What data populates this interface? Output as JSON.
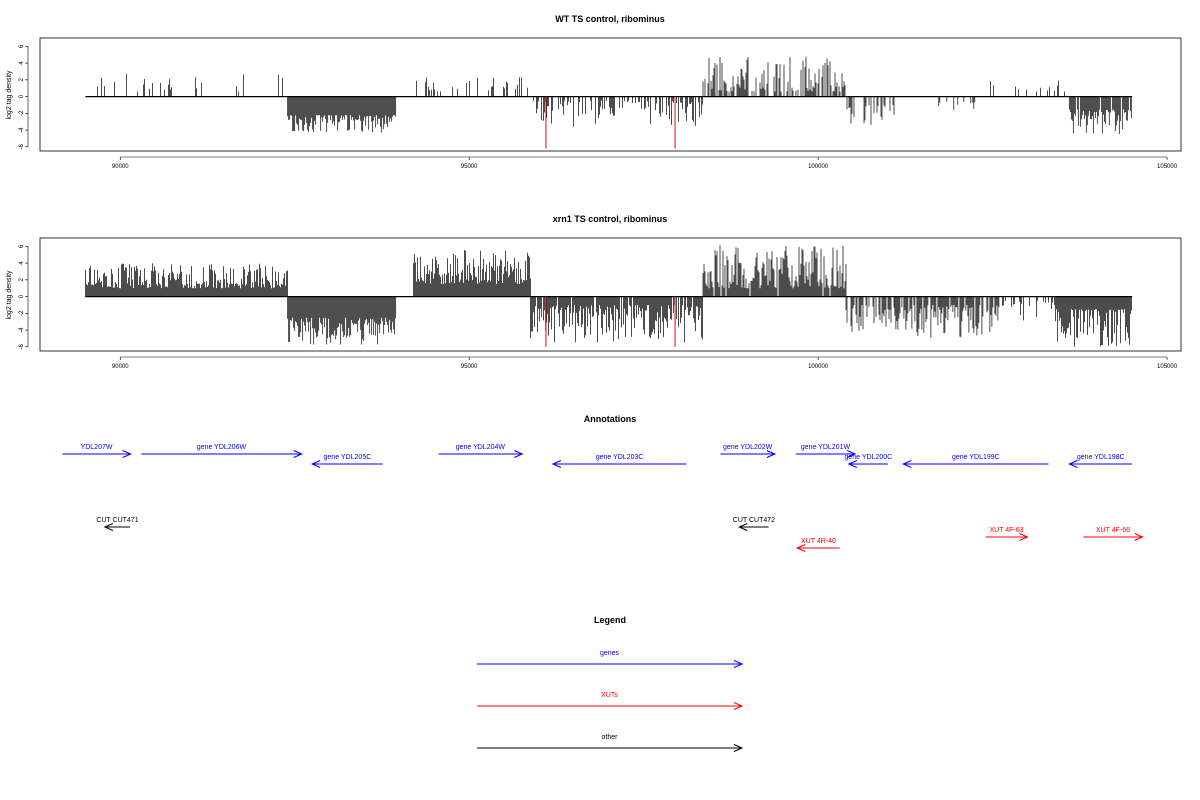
{
  "colors": {
    "gene": "#0000ff",
    "xut": "#ff0000",
    "other": "#000000",
    "cleavage": "#ff0000"
  },
  "chart_data": [
    {
      "type": "bar",
      "title": "WT TS control, ribominus",
      "ylabel": "log2 tag density",
      "xlabel": "",
      "xlim": [
        88850,
        105200
      ],
      "ylim": [
        -6.5,
        7
      ],
      "xticks": [
        "90000",
        "95000",
        "100000",
        "105000"
      ],
      "yticks": [
        "-6",
        "-4",
        "-2",
        "0",
        "2",
        "4",
        "6"
      ],
      "grid": false,
      "segments": [
        {
          "start": 89500,
          "end": 92400,
          "sign": 1,
          "min": 0.6,
          "max": 2.8,
          "density": 0.12
        },
        {
          "start": 92400,
          "end": 93950,
          "sign": -1,
          "min": 2.2,
          "max": 4.3,
          "density": 1.0
        },
        {
          "start": 93950,
          "end": 94200,
          "sign": 0
        },
        {
          "start": 94200,
          "end": 95880,
          "sign": 1,
          "min": 0.6,
          "max": 2.5,
          "density": 0.22
        },
        {
          "start": 95880,
          "end": 98350,
          "sign": -1,
          "min": 0.5,
          "max": 3.6,
          "density": 0.5
        },
        {
          "start": 98350,
          "end": 100400,
          "sign": 1,
          "min": 0.6,
          "max": 4.8,
          "density": 0.55
        },
        {
          "start": 100400,
          "end": 101100,
          "sign": -1,
          "min": 1.0,
          "max": 3.6,
          "density": 0.35
        },
        {
          "start": 101100,
          "end": 101600,
          "sign": 0
        },
        {
          "start": 101600,
          "end": 102400,
          "sign": -1,
          "min": 0.5,
          "max": 1.8,
          "density": 0.18
        },
        {
          "start": 102400,
          "end": 103600,
          "sign": 1,
          "min": 0.6,
          "max": 2.0,
          "density": 0.08
        },
        {
          "start": 103600,
          "end": 104500,
          "sign": -1,
          "min": 1.5,
          "max": 4.5,
          "density": 0.9
        }
      ],
      "red_markers": [
        {
          "x": 96100,
          "y": -6.2
        },
        {
          "x": 97950,
          "y": -6.2
        }
      ]
    },
    {
      "type": "bar",
      "title": "xrn1 TS control, ribominus",
      "ylabel": "log2 tag density",
      "xlabel": "",
      "xlim": [
        88850,
        105200
      ],
      "ylim": [
        -6.5,
        7
      ],
      "xticks": [
        "90000",
        "95000",
        "100000",
        "105000"
      ],
      "yticks": [
        "-6",
        "-4",
        "-2",
        "0",
        "2",
        "4",
        "6"
      ],
      "grid": false,
      "segments": [
        {
          "start": 89500,
          "end": 92400,
          "sign": 1,
          "min": 1.0,
          "max": 4.0,
          "density": 1.0
        },
        {
          "start": 92400,
          "end": 93950,
          "sign": -1,
          "min": 2.5,
          "max": 5.8,
          "density": 1.0
        },
        {
          "start": 93950,
          "end": 94200,
          "sign": 0
        },
        {
          "start": 94200,
          "end": 95880,
          "sign": 1,
          "min": 1.5,
          "max": 5.6,
          "density": 1.0
        },
        {
          "start": 95880,
          "end": 98350,
          "sign": -1,
          "min": 1.0,
          "max": 5.5,
          "density": 0.9
        },
        {
          "start": 98350,
          "end": 100400,
          "sign": 1,
          "min": 1.0,
          "max": 6.2,
          "density": 0.9
        },
        {
          "start": 100400,
          "end": 101100,
          "sign": -1,
          "min": 1.0,
          "max": 4.5,
          "density": 0.7
        },
        {
          "start": 101100,
          "end": 102600,
          "sign": -1,
          "min": 1.0,
          "max": 5.0,
          "density": 0.8
        },
        {
          "start": 102600,
          "end": 103400,
          "sign": -1,
          "min": 0.5,
          "max": 3.0,
          "density": 0.35
        },
        {
          "start": 103400,
          "end": 104500,
          "sign": -1,
          "min": 1.5,
          "max": 6.0,
          "density": 1.0
        }
      ],
      "red_markers": [
        {
          "x": 96100,
          "y": -6.0
        },
        {
          "x": 97950,
          "y": -6.0
        }
      ]
    }
  ],
  "annotations": {
    "title": "Annotations",
    "xlim": [
      88850,
      105200
    ],
    "genes": [
      {
        "label": "YDL207W",
        "start": 89170,
        "end": 90150,
        "dir": "+",
        "row": 0
      },
      {
        "label": "gene YDL206W",
        "start": 90300,
        "end": 92600,
        "dir": "+",
        "row": 0
      },
      {
        "label": "gene YDL205C",
        "start": 92750,
        "end": 93760,
        "dir": "-",
        "row": 1
      },
      {
        "label": "gene YDL204W",
        "start": 94560,
        "end": 95760,
        "dir": "+",
        "row": 0
      },
      {
        "label": "gene YDL203C",
        "start": 96200,
        "end": 98110,
        "dir": "-",
        "row": 1
      },
      {
        "label": "gene YDL202W",
        "start": 98600,
        "end": 99380,
        "dir": "+",
        "row": 0
      },
      {
        "label": "gene YDL201W",
        "start": 99680,
        "end": 100530,
        "dir": "+",
        "row": 0
      },
      {
        "label": "gene YDL200C",
        "start": 100440,
        "end": 101000,
        "dir": "-",
        "row": 1
      },
      {
        "label": "gene YDL199C",
        "start": 101220,
        "end": 103300,
        "dir": "-",
        "row": 1
      },
      {
        "label": "gene YDL198C",
        "start": 103600,
        "end": 104500,
        "dir": "-",
        "row": 1
      }
    ],
    "others": [
      {
        "label": "CUT CUT471",
        "start": 89780,
        "end": 90140,
        "dir": "-"
      },
      {
        "label": "CUT CUT472",
        "start": 98870,
        "end": 99290,
        "dir": "-"
      }
    ],
    "xuts": [
      {
        "label": "XUT 4R-40",
        "start": 99700,
        "end": 100310,
        "dir": "-"
      },
      {
        "label": "XUT 4F-63",
        "start": 102400,
        "end": 103000,
        "dir": "+"
      },
      {
        "label": "XUT 4F-66",
        "start": 103800,
        "end": 104650,
        "dir": "+"
      }
    ]
  },
  "legend": {
    "title": "Legend",
    "items": [
      {
        "label": "genes",
        "color": "#0000ff"
      },
      {
        "label": "XUTs",
        "color": "#ff0000"
      },
      {
        "label": "other",
        "color": "#000000"
      }
    ]
  }
}
